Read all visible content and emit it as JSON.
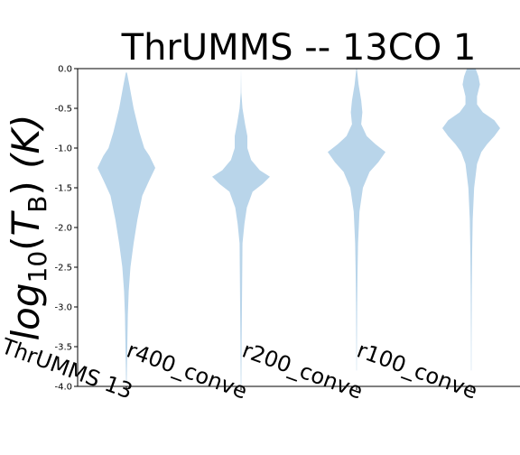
{
  "chart_data": {
    "type": "violin",
    "title": "ThrUMMS -- 13CO 1",
    "ylabel": "log10(T_B) (K)",
    "ylabel_parts": {
      "prefix": "log",
      "sub": "10",
      "open": "(",
      "var": "T",
      "varsub": "B",
      "close": ")",
      "unit": "(K)"
    },
    "xlabel": "",
    "ylim": [
      -4.0,
      0.0
    ],
    "yticks": [
      "0.0",
      "-0.5",
      "-1.0",
      "-1.5",
      "-2.0",
      "-2.5",
      "-3.0",
      "-3.5",
      "-4.0"
    ],
    "ytick_values": [
      0.0,
      -0.5,
      -1.0,
      -1.5,
      -2.0,
      -2.5,
      -3.0,
      -3.5,
      -4.0
    ],
    "categories": [
      "ThrUMMS 13",
      "r400_conve",
      "r200_conve",
      "r100_conve"
    ],
    "series": [
      {
        "max": -0.05,
        "min": -3.97,
        "peak": -1.25,
        "profile": [
          [
            -0.05,
            0.02
          ],
          [
            -0.2,
            0.1
          ],
          [
            -0.5,
            0.25
          ],
          [
            -0.8,
            0.45
          ],
          [
            -1.0,
            0.62
          ],
          [
            -1.1,
            0.8
          ],
          [
            -1.25,
            1.0
          ],
          [
            -1.4,
            0.8
          ],
          [
            -1.6,
            0.55
          ],
          [
            -1.9,
            0.38
          ],
          [
            -2.2,
            0.25
          ],
          [
            -2.5,
            0.14
          ],
          [
            -2.8,
            0.08
          ],
          [
            -3.1,
            0.05
          ],
          [
            -3.5,
            0.03
          ],
          [
            -3.97,
            0.01
          ]
        ]
      },
      {
        "max": 0.0,
        "min": -3.98,
        "peak": -1.36,
        "profile": [
          [
            0.0,
            0.0
          ],
          [
            -0.3,
            0.01
          ],
          [
            -0.5,
            0.05
          ],
          [
            -0.7,
            0.14
          ],
          [
            -0.85,
            0.22
          ],
          [
            -1.0,
            0.22
          ],
          [
            -1.15,
            0.35
          ],
          [
            -1.28,
            0.65
          ],
          [
            -1.36,
            1.0
          ],
          [
            -1.45,
            0.75
          ],
          [
            -1.55,
            0.4
          ],
          [
            -1.75,
            0.2
          ],
          [
            -1.95,
            0.12
          ],
          [
            -2.2,
            0.05
          ],
          [
            -2.6,
            0.04
          ],
          [
            -3.0,
            0.03
          ],
          [
            -3.5,
            0.02
          ],
          [
            -3.98,
            0.01
          ]
        ]
      },
      {
        "max": 0.0,
        "min": -3.8,
        "peak": -1.05,
        "profile": [
          [
            0.0,
            0.01
          ],
          [
            -0.2,
            0.07
          ],
          [
            -0.4,
            0.16
          ],
          [
            -0.55,
            0.2
          ],
          [
            -0.7,
            0.16
          ],
          [
            -0.85,
            0.35
          ],
          [
            -0.95,
            0.65
          ],
          [
            -1.05,
            1.0
          ],
          [
            -1.18,
            0.75
          ],
          [
            -1.3,
            0.45
          ],
          [
            -1.5,
            0.22
          ],
          [
            -1.8,
            0.1
          ],
          [
            -2.2,
            0.05
          ],
          [
            -2.6,
            0.03
          ],
          [
            -3.0,
            0.02
          ],
          [
            -3.5,
            0.01
          ],
          [
            -3.8,
            0.005
          ]
        ]
      },
      {
        "max": 0.0,
        "min": -3.8,
        "peak": -0.75,
        "profile": [
          [
            0.0,
            0.15
          ],
          [
            -0.1,
            0.25
          ],
          [
            -0.2,
            0.3
          ],
          [
            -0.35,
            0.2
          ],
          [
            -0.45,
            0.2
          ],
          [
            -0.55,
            0.4
          ],
          [
            -0.65,
            0.8
          ],
          [
            -0.75,
            1.0
          ],
          [
            -0.85,
            0.8
          ],
          [
            -0.95,
            0.55
          ],
          [
            -1.05,
            0.35
          ],
          [
            -1.2,
            0.2
          ],
          [
            -1.5,
            0.1
          ],
          [
            -1.9,
            0.05
          ],
          [
            -2.3,
            0.03
          ],
          [
            -2.8,
            0.02
          ],
          [
            -3.4,
            0.01
          ],
          [
            -3.8,
            0.005
          ]
        ]
      }
    ],
    "grid": false
  }
}
